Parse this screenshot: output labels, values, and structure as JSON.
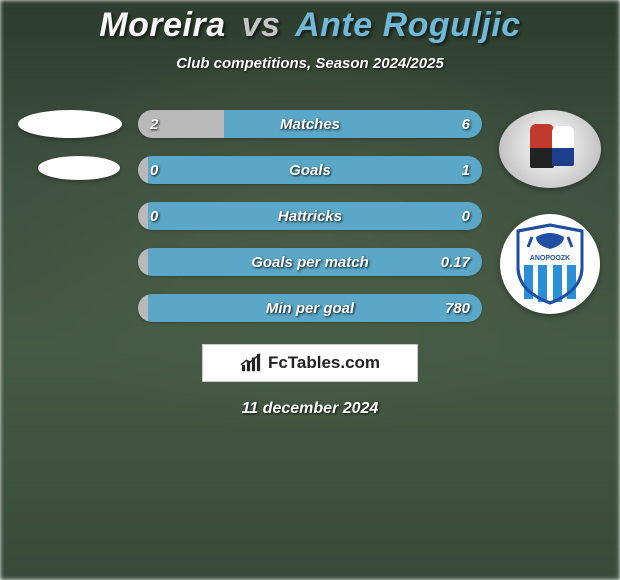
{
  "title": {
    "player1": "Moreira",
    "vs": "vs",
    "player2": "Ante Roguljic",
    "player1_color": "#f5f5f5",
    "vs_color": "#c5c5c5",
    "player2_color": "#6fb8d8",
    "fontsize": 34
  },
  "subtitle": "Club competitions, Season 2024/2025",
  "colors": {
    "player1_bar": "#b9b9b9",
    "player2_bar": "#5aa7c7",
    "text": "#ffffff",
    "background_base": "#3a4a3a"
  },
  "bar_style": {
    "height": 28,
    "radius": 14,
    "font_size": 15,
    "label_font_size": 15
  },
  "stats": [
    {
      "label": "Matches",
      "left_val": "2",
      "right_val": "6",
      "left_pct": 25.0,
      "right_pct": 75.0
    },
    {
      "label": "Goals",
      "left_val": "0",
      "right_val": "1",
      "left_pct": 3.0,
      "right_pct": 97.0
    },
    {
      "label": "Hattricks",
      "left_val": "0",
      "right_val": "0",
      "left_pct": 3.0,
      "right_pct": 97.0
    },
    {
      "label": "Goals per match",
      "left_val": "",
      "right_val": "0.17",
      "left_pct": 3.0,
      "right_pct": 97.0
    },
    {
      "label": "Min per goal",
      "left_val": "",
      "right_val": "780",
      "left_pct": 3.0,
      "right_pct": 97.0
    }
  ],
  "club_badge": {
    "shield_fill": "#ffffff",
    "shield_stroke": "#1e4fa3",
    "stripes_color": "#2a8fd6",
    "bird_color": "#1e4fa3",
    "text": "ANOPOOZK",
    "text_color": "#1e4fa3"
  },
  "footer": {
    "brand_prefix": "Fc",
    "brand_rest": "Tables.com",
    "icon_color": "#222222",
    "bg": "#ffffff",
    "border": "#c9c9c9"
  },
  "date": "11 december 2024"
}
